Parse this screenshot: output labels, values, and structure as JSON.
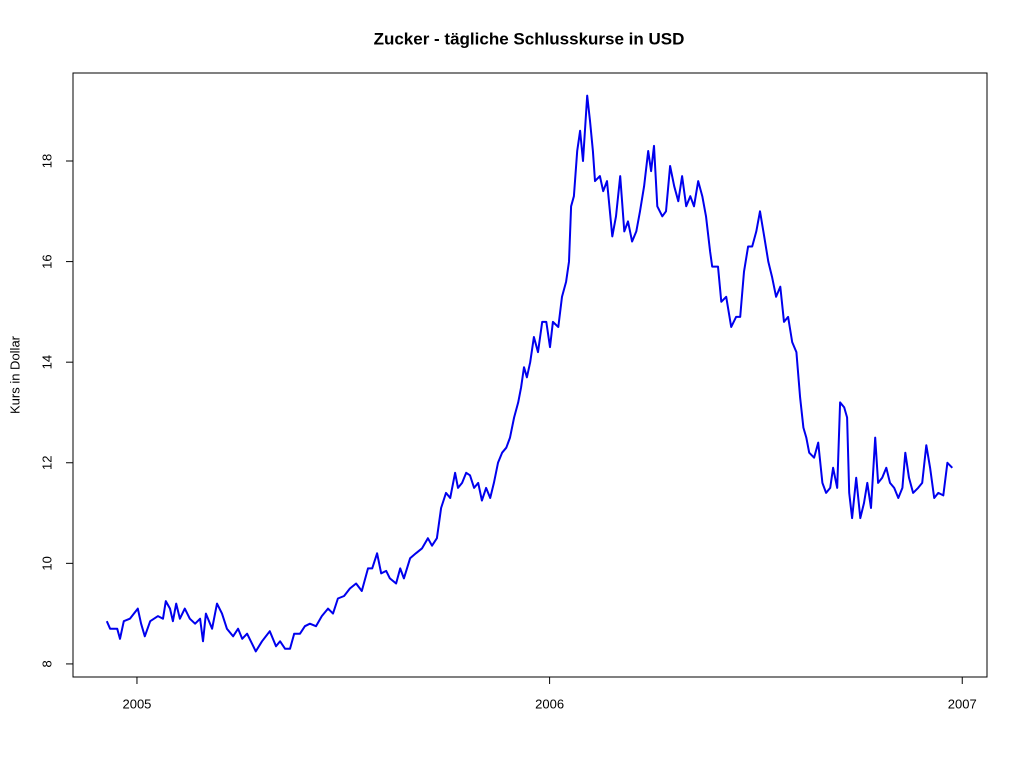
{
  "chart_data": {
    "type": "line",
    "title": "Zucker  - tägliche Schlusskurse in USD",
    "y_label": "Kurs in Dollar",
    "x": [
      2004.927,
      2004.935,
      2004.952,
      2004.959,
      2004.968,
      2004.983,
      2005.002,
      2005.01,
      2005.019,
      2005.032,
      2005.051,
      2005.063,
      2005.07,
      2005.08,
      2005.087,
      2005.095,
      2005.104,
      2005.116,
      2005.128,
      2005.141,
      2005.153,
      2005.16,
      2005.167,
      2005.182,
      2005.194,
      2005.206,
      2005.218,
      2005.233,
      2005.245,
      2005.255,
      2005.267,
      2005.279,
      2005.288,
      2005.303,
      2005.322,
      2005.337,
      2005.347,
      2005.359,
      2005.371,
      2005.381,
      2005.395,
      2005.407,
      2005.419,
      2005.434,
      2005.448,
      2005.463,
      2005.475,
      2005.487,
      2005.502,
      2005.516,
      2005.531,
      2005.545,
      2005.56,
      2005.57,
      2005.582,
      2005.592,
      2005.604,
      2005.613,
      2005.628,
      2005.638,
      2005.647,
      2005.662,
      2005.676,
      2005.691,
      2005.705,
      2005.715,
      2005.727,
      2005.737,
      2005.749,
      2005.759,
      2005.771,
      2005.778,
      2005.788,
      2005.798,
      2005.807,
      2005.817,
      2005.827,
      2005.836,
      2005.846,
      2005.856,
      2005.865,
      2005.875,
      2005.885,
      2005.895,
      2005.904,
      2005.914,
      2005.924,
      2005.931,
      2005.938,
      2005.945,
      2005.953,
      2005.962,
      2005.972,
      2005.982,
      2005.992,
      2006.001,
      2006.008,
      2006.021,
      2006.03,
      2006.04,
      2006.047,
      2006.052,
      2006.059,
      2006.067,
      2006.074,
      2006.081,
      2006.091,
      2006.098,
      2006.105,
      2006.11,
      2006.122,
      2006.13,
      2006.139,
      2006.152,
      2006.161,
      2006.171,
      2006.181,
      2006.19,
      2006.2,
      2006.21,
      2006.219,
      2006.229,
      2006.239,
      2006.246,
      2006.253,
      2006.261,
      2006.273,
      2006.282,
      2006.292,
      2006.302,
      2006.312,
      2006.321,
      2006.331,
      2006.341,
      2006.35,
      2006.36,
      2006.37,
      2006.379,
      2006.389,
      2006.394,
      2006.408,
      2006.416,
      2006.428,
      2006.44,
      2006.452,
      2006.462,
      2006.471,
      2006.481,
      2006.491,
      2006.501,
      2006.51,
      2006.52,
      2006.53,
      2006.539,
      2006.549,
      2006.559,
      2006.568,
      2006.578,
      2006.588,
      2006.598,
      2006.607,
      2006.615,
      2006.622,
      2006.629,
      2006.641,
      2006.651,
      2006.661,
      2006.67,
      2006.68,
      2006.687,
      2006.697,
      2006.704,
      2006.714,
      2006.721,
      2006.726,
      2006.733,
      2006.743,
      2006.753,
      2006.762,
      2006.77,
      2006.779,
      2006.789,
      2006.796,
      2006.806,
      2006.816,
      2006.825,
      2006.835,
      2006.845,
      2006.855,
      2006.862,
      2006.871,
      2006.881,
      2006.893,
      2006.903,
      2006.913,
      2006.922,
      2006.932,
      2006.942,
      2006.954,
      2006.964,
      2006.976
    ],
    "series": [
      {
        "color": "#0000ee",
        "values": [
          8.85,
          8.7,
          8.7,
          8.5,
          8.85,
          8.9,
          9.1,
          8.8,
          8.55,
          8.85,
          8.95,
          8.9,
          9.25,
          9.1,
          8.85,
          9.2,
          8.9,
          9.1,
          8.9,
          8.8,
          8.9,
          8.45,
          9.0,
          8.7,
          9.2,
          9.0,
          8.7,
          8.55,
          8.7,
          8.5,
          8.6,
          8.4,
          8.25,
          8.45,
          8.65,
          8.35,
          8.45,
          8.3,
          8.3,
          8.6,
          8.6,
          8.75,
          8.8,
          8.75,
          8.95,
          9.1,
          9.0,
          9.3,
          9.35,
          9.5,
          9.6,
          9.45,
          9.9,
          9.9,
          10.2,
          9.8,
          9.85,
          9.7,
          9.6,
          9.9,
          9.7,
          10.1,
          10.2,
          10.3,
          10.5,
          10.35,
          10.5,
          11.1,
          11.4,
          11.3,
          11.8,
          11.5,
          11.6,
          11.8,
          11.75,
          11.5,
          11.6,
          11.25,
          11.5,
          11.3,
          11.6,
          12.0,
          12.2,
          12.3,
          12.5,
          12.9,
          13.2,
          13.5,
          13.9,
          13.7,
          14.0,
          14.5,
          14.2,
          14.8,
          14.8,
          14.3,
          14.8,
          14.7,
          15.3,
          15.6,
          16.0,
          17.1,
          17.3,
          18.2,
          18.6,
          18.0,
          19.3,
          18.8,
          18.2,
          17.6,
          17.7,
          17.4,
          17.6,
          16.5,
          16.9,
          17.7,
          16.6,
          16.8,
          16.4,
          16.6,
          17.0,
          17.5,
          18.2,
          17.8,
          18.3,
          17.1,
          16.9,
          17.0,
          17.9,
          17.5,
          17.2,
          17.7,
          17.1,
          17.3,
          17.1,
          17.6,
          17.3,
          16.9,
          16.2,
          15.9,
          15.9,
          15.2,
          15.3,
          14.7,
          14.9,
          14.9,
          15.8,
          16.3,
          16.3,
          16.6,
          17.0,
          16.5,
          16.0,
          15.7,
          15.3,
          15.5,
          14.8,
          14.9,
          14.4,
          14.2,
          13.3,
          12.7,
          12.5,
          12.2,
          12.1,
          12.4,
          11.6,
          11.4,
          11.5,
          11.9,
          11.5,
          13.2,
          13.1,
          12.9,
          11.4,
          10.9,
          11.7,
          10.9,
          11.2,
          11.6,
          11.1,
          12.5,
          11.6,
          11.7,
          11.9,
          11.6,
          11.5,
          11.3,
          11.5,
          12.2,
          11.7,
          11.4,
          11.5,
          11.6,
          12.35,
          11.9,
          11.3,
          11.4,
          11.35,
          12.0,
          11.9
        ]
      }
    ],
    "xlim": [
      2004.845,
      2007.06
    ],
    "xticks": [
      2005,
      2006,
      2007
    ],
    "ylim": [
      7.74,
      19.75
    ],
    "yticks": [
      8,
      10,
      12,
      14,
      16,
      18
    ]
  }
}
